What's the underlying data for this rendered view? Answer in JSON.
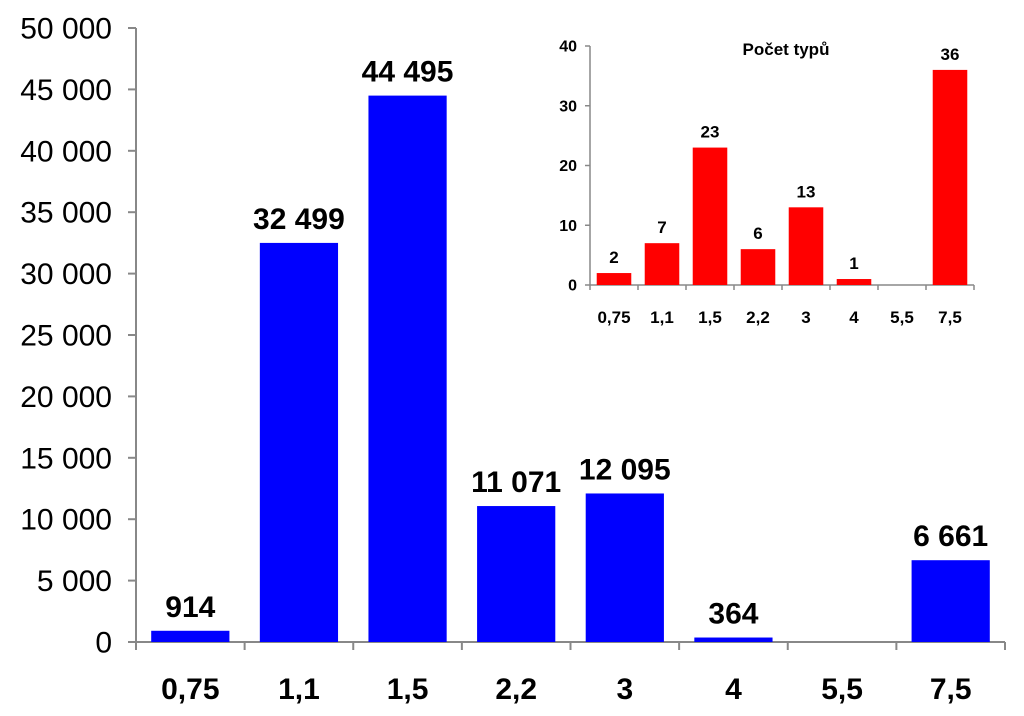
{
  "chart_data": [
    {
      "type": "bar",
      "categories": [
        "0,75",
        "1,1",
        "1,5",
        "2,2",
        "3",
        "4",
        "5,5",
        "7,5"
      ],
      "values": [
        914,
        32499,
        44495,
        11071,
        12095,
        364,
        0,
        6661
      ],
      "value_labels": [
        "914",
        "32 499",
        "44 495",
        "11 071",
        "12 095",
        "364",
        "",
        "6 661"
      ],
      "y_ticks": [
        "0",
        "5 000",
        "10 000",
        "15 000",
        "20 000",
        "25 000",
        "30 000",
        "35 000",
        "40 000",
        "45 000",
        "50 000"
      ],
      "ylim": [
        0,
        50000
      ],
      "title": "",
      "xlabel": "",
      "ylabel": "",
      "color": "#0000ff",
      "grid": false
    },
    {
      "type": "bar",
      "title": "Počet typů",
      "categories": [
        "0,75",
        "1,1",
        "1,5",
        "2,2",
        "3",
        "4",
        "5,5",
        "7,5"
      ],
      "values": [
        2,
        7,
        23,
        6,
        13,
        1,
        0,
        36
      ],
      "value_labels": [
        "2",
        "7",
        "23",
        "6",
        "13",
        "1",
        "",
        "36"
      ],
      "y_ticks": [
        "0",
        "10",
        "20",
        "30",
        "40"
      ],
      "ylim": [
        0,
        40
      ],
      "xlabel": "",
      "ylabel": "",
      "color": "#ff0000",
      "grid": false
    }
  ]
}
